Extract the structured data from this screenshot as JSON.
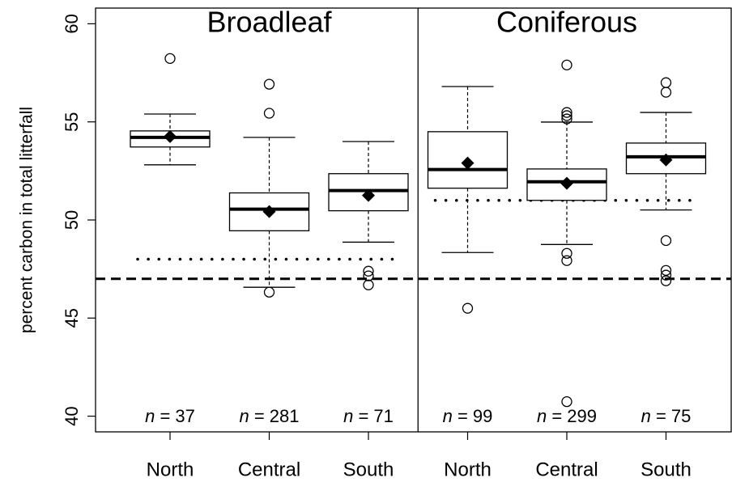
{
  "chart_data": {
    "type": "boxplot",
    "ylabel": "percent carbon in total litterfall",
    "ylim": [
      39.2,
      60.8
    ],
    "yticks": [
      40,
      45,
      50,
      55,
      60
    ],
    "reference_line": 47,
    "panels": [
      {
        "title": "Broadleaf",
        "reference_line": 48,
        "categories": [
          "North",
          "Central",
          "South"
        ],
        "n_labels": [
          "n = 37",
          "n = 281",
          "n = 71"
        ],
        "boxes": [
          {
            "min": 52.81,
            "q1": 53.72,
            "median": 54.21,
            "q3": 54.54,
            "max": 55.4,
            "mean": 54.25,
            "outliers": [
              58.23
            ]
          },
          {
            "min": 46.57,
            "q1": 49.45,
            "median": 50.55,
            "q3": 51.38,
            "max": 54.21,
            "mean": 50.43,
            "outliers": [
              56.92,
              55.44,
              46.32
            ]
          },
          {
            "min": 48.87,
            "q1": 50.47,
            "median": 51.5,
            "q3": 52.36,
            "max": 54.0,
            "mean": 51.25,
            "outliers": [
              47.39,
              47.15,
              46.69
            ]
          }
        ]
      },
      {
        "title": "Coniferous",
        "reference_line": 51,
        "categories": [
          "North",
          "Central",
          "South"
        ],
        "n_labels": [
          "n = 99",
          "n = 299",
          "n = 75"
        ],
        "boxes": [
          {
            "min": 48.34,
            "q1": 51.62,
            "median": 52.57,
            "q3": 54.5,
            "max": 56.8,
            "mean": 52.9,
            "outliers": [
              45.5
            ]
          },
          {
            "min": 48.75,
            "q1": 51.0,
            "median": 51.95,
            "q3": 52.6,
            "max": 54.99,
            "mean": 51.87,
            "outliers": [
              57.9,
              55.48,
              55.32,
              55.15,
              48.3,
              47.93,
              40.74
            ]
          },
          {
            "min": 50.51,
            "q1": 52.36,
            "median": 53.22,
            "q3": 53.92,
            "max": 55.48,
            "mean": 53.06,
            "outliers": [
              57.0,
              56.51,
              48.95,
              47.43,
              47.19,
              46.9
            ]
          }
        ]
      }
    ]
  }
}
